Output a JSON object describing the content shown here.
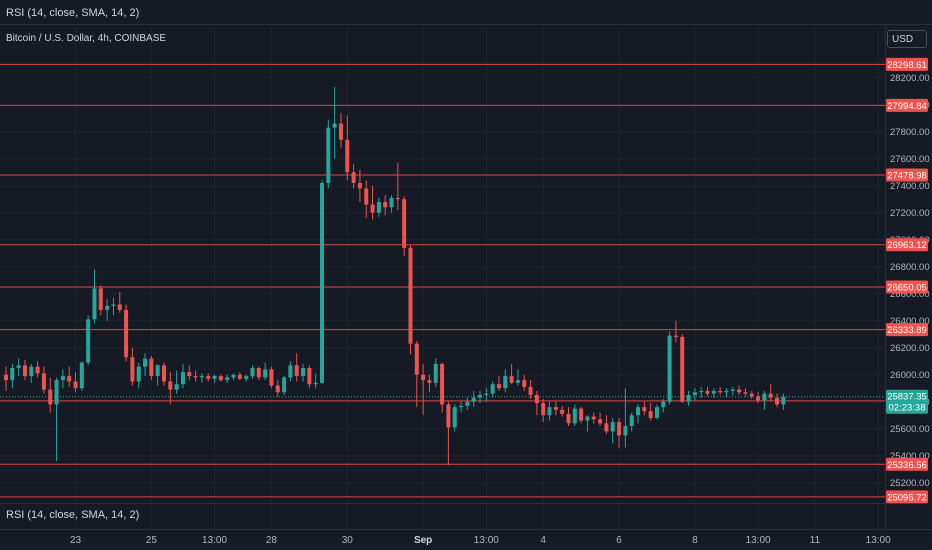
{
  "header": {
    "indicator_top": "RSI (14, close, SMA, 14, 2)",
    "symbol": "Bitcoin / U.S. Dollar, 4h, COINBASE",
    "currency": "USD",
    "indicator_bottom": "RSI (14, close, SMA, 14, 2)"
  },
  "colors": {
    "background": "#161a25",
    "grid": "#1f2330",
    "up": "#26a69a",
    "down": "#ef5350",
    "level_line": "#e0443f",
    "axis_text": "#b2b5be"
  },
  "chart_data": {
    "type": "candlestick",
    "title": "Bitcoin / U.S. Dollar, 4h, COINBASE",
    "ylim": [
      25050,
      28420
    ],
    "y_ticks": [
      25200,
      25400,
      25600,
      25800,
      26000,
      26200,
      26400,
      26600,
      26800,
      27000,
      27200,
      27400,
      27600,
      27800,
      28000,
      28200
    ],
    "y_tick_labels": [
      "25200.00",
      "25400.00",
      "25600.00",
      "25800.00",
      "26000.00",
      "26200.00",
      "26400.00",
      "26600.00",
      "26800.00",
      "27000.00",
      "27200.00",
      "27400.00",
      "27600.00",
      "27800.00",
      "28000.00",
      "28200.00"
    ],
    "x_labels": [
      "23",
      "25",
      "13:00",
      "28",
      "30",
      "Sep",
      "13:00",
      "4",
      "6",
      "8",
      "13:00",
      "11",
      "13:00"
    ],
    "x_label_bars": [
      11,
      23,
      33,
      42,
      54,
      66,
      76,
      85,
      97,
      109,
      119,
      128,
      138
    ],
    "levels": [
      28298.61,
      27994.84,
      27478.98,
      26963.12,
      26650.05,
      26333.89,
      25806.01,
      25336.56,
      25095.72
    ],
    "level_labels": [
      "28298.61",
      "27994.84",
      "27478.98",
      "26963.12",
      "26650.05",
      "26333.89",
      "25806.01",
      "25336.56",
      "25095.72"
    ],
    "last_price": 25837.35,
    "last_price_label": "25837.35",
    "countdown": "02:23:38",
    "candles": [
      [
        26000,
        26060,
        25880,
        25960
      ],
      [
        25960,
        26080,
        25900,
        26050
      ],
      [
        26050,
        26120,
        25990,
        26070
      ],
      [
        26070,
        26110,
        25960,
        25990
      ],
      [
        25990,
        26080,
        25940,
        26060
      ],
      [
        26060,
        26100,
        25980,
        26010
      ],
      [
        26010,
        26060,
        25860,
        25890
      ],
      [
        25890,
        25980,
        25720,
        25780
      ],
      [
        25780,
        25980,
        25360,
        25960
      ],
      [
        25960,
        26040,
        25900,
        25990
      ],
      [
        25990,
        26060,
        25910,
        25950
      ],
      [
        25950,
        26020,
        25870,
        25900
      ],
      [
        25900,
        26100,
        25880,
        26090
      ],
      [
        26090,
        26440,
        26070,
        26410
      ],
      [
        26410,
        26780,
        26380,
        26640
      ],
      [
        26640,
        26660,
        26440,
        26480
      ],
      [
        26480,
        26560,
        26400,
        26510
      ],
      [
        26510,
        26570,
        26440,
        26520
      ],
      [
        26520,
        26610,
        26460,
        26480
      ],
      [
        26480,
        26520,
        26100,
        26130
      ],
      [
        26130,
        26200,
        25920,
        25950
      ],
      [
        25950,
        26090,
        25900,
        26060
      ],
      [
        26060,
        26160,
        25990,
        26120
      ],
      [
        26120,
        26140,
        25960,
        25990
      ],
      [
        25990,
        26080,
        25920,
        26070
      ],
      [
        26070,
        26090,
        25920,
        25950
      ],
      [
        25950,
        26020,
        25780,
        25890
      ],
      [
        25890,
        26030,
        25860,
        25930
      ],
      [
        25930,
        26080,
        25900,
        26020
      ],
      [
        26020,
        26070,
        25960,
        25990
      ],
      [
        25990,
        26030,
        25950,
        25980
      ],
      [
        25980,
        26010,
        25940,
        25990
      ],
      [
        25990,
        26010,
        25950,
        25970
      ],
      [
        25970,
        26000,
        25940,
        25990
      ],
      [
        25990,
        26000,
        25950,
        25960
      ],
      [
        25960,
        26000,
        25940,
        25980
      ],
      [
        25980,
        26010,
        25960,
        26000
      ],
      [
        26000,
        26020,
        25960,
        25970
      ],
      [
        25970,
        26000,
        25950,
        25990
      ],
      [
        25990,
        26070,
        25970,
        26050
      ],
      [
        26050,
        26060,
        25960,
        25980
      ],
      [
        25980,
        26090,
        25960,
        26040
      ],
      [
        26040,
        26060,
        25900,
        25920
      ],
      [
        25920,
        25960,
        25840,
        25870
      ],
      [
        25870,
        25990,
        25850,
        25980
      ],
      [
        25980,
        26100,
        25950,
        26070
      ],
      [
        26070,
        26160,
        25950,
        25990
      ],
      [
        25990,
        26080,
        25950,
        26050
      ],
      [
        26050,
        26070,
        25900,
        25930
      ],
      [
        25930,
        26010,
        25900,
        25940
      ],
      [
        25940,
        27440,
        25930,
        27420
      ],
      [
        27420,
        27890,
        27380,
        27830
      ],
      [
        27830,
        28130,
        27600,
        27860
      ],
      [
        27860,
        27940,
        27680,
        27740
      ],
      [
        27740,
        27920,
        27440,
        27500
      ],
      [
        27500,
        27560,
        27380,
        27420
      ],
      [
        27420,
        27520,
        27280,
        27380
      ],
      [
        27380,
        27440,
        27160,
        27260
      ],
      [
        27260,
        27400,
        27150,
        27200
      ],
      [
        27200,
        27310,
        27170,
        27280
      ],
      [
        27280,
        27330,
        27180,
        27240
      ],
      [
        27240,
        27330,
        27200,
        27310
      ],
      [
        27310,
        27570,
        27220,
        27300
      ],
      [
        27300,
        27320,
        26880,
        26940
      ],
      [
        26940,
        26960,
        26150,
        26230
      ],
      [
        26230,
        26250,
        25760,
        26000
      ],
      [
        26000,
        26080,
        25700,
        25960
      ],
      [
        25960,
        26000,
        25870,
        25940
      ],
      [
        25940,
        26120,
        25910,
        26080
      ],
      [
        26080,
        26090,
        25720,
        25780
      ],
      [
        25780,
        25800,
        25330,
        25610
      ],
      [
        25610,
        25780,
        25580,
        25760
      ],
      [
        25760,
        25800,
        25720,
        25770
      ],
      [
        25770,
        25830,
        25740,
        25800
      ],
      [
        25800,
        25880,
        25760,
        25830
      ],
      [
        25830,
        25880,
        25790,
        25850
      ],
      [
        25850,
        25900,
        25800,
        25860
      ],
      [
        25860,
        25950,
        25830,
        25930
      ],
      [
        25930,
        25990,
        25880,
        25900
      ],
      [
        25900,
        26040,
        25870,
        25990
      ],
      [
        25990,
        26080,
        25930,
        25940
      ],
      [
        25940,
        26040,
        25920,
        25960
      ],
      [
        25960,
        26000,
        25880,
        25910
      ],
      [
        25910,
        25960,
        25820,
        25850
      ],
      [
        25850,
        25880,
        25700,
        25790
      ],
      [
        25790,
        25820,
        25650,
        25700
      ],
      [
        25700,
        25800,
        25660,
        25760
      ],
      [
        25760,
        25800,
        25700,
        25740
      ],
      [
        25740,
        25770,
        25690,
        25710
      ],
      [
        25710,
        25760,
        25620,
        25640
      ],
      [
        25640,
        25780,
        25620,
        25750
      ],
      [
        25750,
        25760,
        25640,
        25660
      ],
      [
        25660,
        25700,
        25580,
        25690
      ],
      [
        25690,
        25720,
        25640,
        25670
      ],
      [
        25670,
        25720,
        25620,
        25640
      ],
      [
        25640,
        25700,
        25560,
        25580
      ],
      [
        25580,
        25680,
        25490,
        25650
      ],
      [
        25650,
        25680,
        25460,
        25550
      ],
      [
        25550,
        25900,
        25460,
        25620
      ],
      [
        25620,
        25720,
        25580,
        25700
      ],
      [
        25700,
        25780,
        25640,
        25760
      ],
      [
        25760,
        25800,
        25700,
        25730
      ],
      [
        25730,
        25790,
        25660,
        25680
      ],
      [
        25680,
        25780,
        25670,
        25760
      ],
      [
        25760,
        25820,
        25720,
        25800
      ],
      [
        25800,
        26320,
        25780,
        26290
      ],
      [
        26290,
        26400,
        26240,
        26280
      ],
      [
        26280,
        26300,
        25790,
        25800
      ],
      [
        25800,
        25880,
        25770,
        25850
      ],
      [
        25850,
        25900,
        25810,
        25870
      ],
      [
        25870,
        25910,
        25830,
        25880
      ],
      [
        25880,
        25910,
        25840,
        25860
      ],
      [
        25860,
        25900,
        25830,
        25880
      ],
      [
        25880,
        25910,
        25850,
        25870
      ],
      [
        25870,
        25900,
        25830,
        25880
      ],
      [
        25880,
        25910,
        25850,
        25890
      ],
      [
        25890,
        25920,
        25850,
        25870
      ],
      [
        25870,
        25900,
        25840,
        25860
      ],
      [
        25860,
        25880,
        25820,
        25840
      ],
      [
        25840,
        25870,
        25790,
        25810
      ],
      [
        25810,
        25880,
        25740,
        25860
      ],
      [
        25860,
        25930,
        25800,
        25830
      ],
      [
        25830,
        25860,
        25760,
        25780
      ],
      [
        25780,
        25860,
        25740,
        25837.35
      ]
    ]
  }
}
